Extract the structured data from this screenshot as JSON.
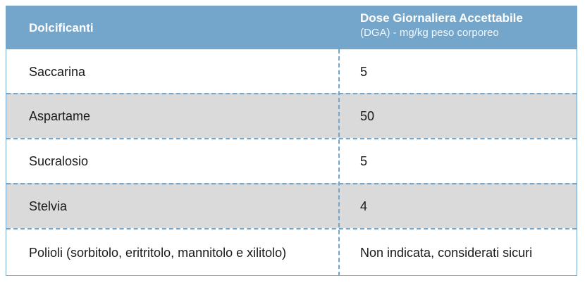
{
  "header": {
    "col1": "Dolcificanti",
    "col2_title": "Dose Giornaliera Accettabile",
    "col2_subtitle": "(DGA) - mg/kg peso corporeo"
  },
  "rows": [
    {
      "name": "Saccarina",
      "value": "5"
    },
    {
      "name": "Aspartame",
      "value": "50"
    },
    {
      "name": "Sucralosio",
      "value": "5"
    },
    {
      "name": "Stelvia",
      "value": "4"
    },
    {
      "name": "Polioli (sorbitolo, eritritolo, mannitolo e xilitolo)",
      "value": "Non indicata, considerati sicuri"
    }
  ],
  "colors": {
    "header_bg": "#74a6cb",
    "shaded_row": "#dadada",
    "border": "#74a6cb"
  }
}
